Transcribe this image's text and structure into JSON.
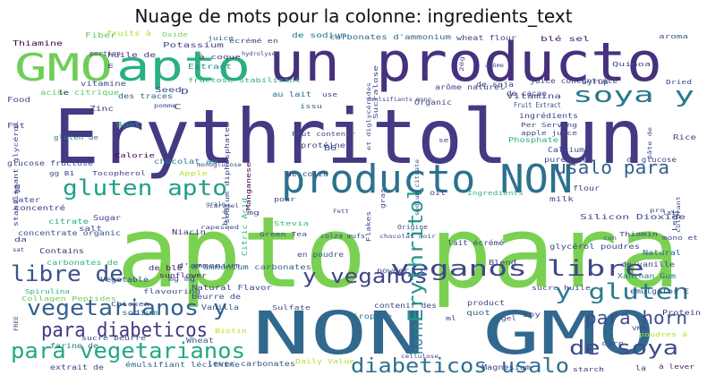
{
  "title": "Nuage de mots pour la colonne: ingredients_text",
  "words": [
    {
      "text": "apto para",
      "color": "#7ad151"
    },
    {
      "text": "Erythritol un",
      "color": "#443983"
    },
    {
      "text": "NON GMO",
      "color": "#31688e"
    },
    {
      "text": "un producto",
      "color": "#46317e"
    },
    {
      "text": "producto NON",
      "color": "#2c728e"
    },
    {
      "text": "GMO",
      "color": "#6ece58"
    },
    {
      "text": "apto",
      "color": "#2ab07f"
    },
    {
      "text": "vegetarianos y",
      "color": "#35608d"
    },
    {
      "text": "veganos libre",
      "color": "#3f4788"
    },
    {
      "text": "para vegetarianos",
      "color": "#22a884"
    },
    {
      "text": "gluten apto",
      "color": "#1fa187"
    },
    {
      "text": "libre de",
      "color": "#3b528b"
    },
    {
      "text": "y gluten",
      "color": "#287d8e"
    },
    {
      "text": "para diabeticos",
      "color": "#453781"
    },
    {
      "text": "diabeticos usalo",
      "color": "#2d708e"
    },
    {
      "text": "y veganos",
      "color": "#414487"
    },
    {
      "text": "de soya",
      "color": "#3e4a89"
    },
    {
      "text": "soya y",
      "color": "#2a788e"
    },
    {
      "text": "usalo para",
      "color": "#34618d"
    },
    {
      "text": "para horn",
      "color": "#3b518b"
    },
    {
      "text": "Erythritol",
      "color": "#1f988b"
    },
    {
      "text": "horn",
      "color": "#25848e"
    },
    {
      "text": "Thiamine",
      "color": "#440154"
    },
    {
      "text": "Fiber",
      "color": "#5ec962"
    },
    {
      "text": "fruits à",
      "color": "#b5de2b"
    },
    {
      "text": "Oxide",
      "color": "#7ad151"
    },
    {
      "text": "juice",
      "color": "#31688e"
    },
    {
      "text": "écrémé en",
      "color": "#3e4989"
    },
    {
      "text": "de sodium",
      "color": "#2a788e"
    },
    {
      "text": "carbonates d'ammonium",
      "color": "#31688e"
    },
    {
      "text": "wheat flour",
      "color": "#3e4989"
    },
    {
      "text": "blé sel",
      "color": "#482475"
    },
    {
      "text": "aroma",
      "color": "#3b528b"
    },
    {
      "text": "huile de",
      "color": "#443983"
    },
    {
      "text": "Potassium",
      "color": "#3f4788"
    },
    {
      "text": "à coque",
      "color": "#453781"
    },
    {
      "text": "Extract",
      "color": "#21918c"
    },
    {
      "text": "fructose stabilisant",
      "color": "#29af7f"
    },
    {
      "text": "vitamine",
      "color": "#3b528b"
    },
    {
      "text": "acide citrique",
      "color": "#5ec962"
    },
    {
      "text": "des traces",
      "color": "#31688e"
    },
    {
      "text": "au lait",
      "color": "#2c728e"
    },
    {
      "text": "issu",
      "color": "#31688e"
    },
    {
      "text": "Zinc",
      "color": "#46327e"
    },
    {
      "text": "Seed",
      "color": "#3b528b"
    },
    {
      "text": "Root",
      "color": "#21918c"
    },
    {
      "text": "Calorie",
      "color": "#440154"
    },
    {
      "text": "chocolat au",
      "color": "#26828e"
    },
    {
      "text": "glucose fructose",
      "color": "#3e4989"
    },
    {
      "text": "Apple",
      "color": "#b5de2b"
    },
    {
      "text": "Tocopherol",
      "color": "#3e4989"
    },
    {
      "text": "concentré",
      "color": "#414487"
    },
    {
      "text": "citrate",
      "color": "#27ad81"
    },
    {
      "text": "concentrate organic",
      "color": "#3b528b"
    },
    {
      "text": "salt",
      "color": "#3e4989"
    },
    {
      "text": "Contains",
      "color": "#46337f"
    },
    {
      "text": "carbonates de",
      "color": "#35b779"
    },
    {
      "text": "d'ammonium",
      "color": "#3f4788"
    },
    {
      "text": "Vegetable",
      "color": "#3b528b"
    },
    {
      "text": "Spirulina",
      "color": "#2db27d"
    },
    {
      "text": "Collagen Peptides",
      "color": "#6ece58"
    },
    {
      "text": "Chicken",
      "color": "#3e4989"
    },
    {
      "text": "sodium",
      "color": "#2c728e"
    },
    {
      "text": "sunflower",
      "color": "#481a6c"
    },
    {
      "text": "de blé",
      "color": "#482173"
    },
    {
      "text": "mg mg",
      "color": "#3b528b"
    },
    {
      "text": "flavouring",
      "color": "#3e4989"
    },
    {
      "text": "d'ammonium carbonates",
      "color": "#31688e"
    },
    {
      "text": "Natural Flavor",
      "color": "#3e4989"
    },
    {
      "text": "beurre de",
      "color": "#3e4989"
    },
    {
      "text": "Vanilla",
      "color": "#3b528b"
    },
    {
      "text": "Biotin",
      "color": "#bddf26"
    },
    {
      "text": "Wheat",
      "color": "#35608d"
    },
    {
      "text": "sucre beurre",
      "color": "#3e4989"
    },
    {
      "text": "farine de",
      "color": "#2a788e"
    },
    {
      "text": "extrait de",
      "color": "#3e4989"
    },
    {
      "text": "émulsifiant lécithine",
      "color": "#31688e"
    },
    {
      "text": "lever carbonates",
      "color": "#3b528b"
    },
    {
      "text": "Daily Value",
      "color": "#b5de2b"
    },
    {
      "text": "Magnesium",
      "color": "#3e4989"
    },
    {
      "text": "starch",
      "color": "#46327e"
    },
    {
      "text": "à lever",
      "color": "#482475"
    },
    {
      "text": "la",
      "color": "#3f4788"
    },
    {
      "text": "Natural",
      "color": "#31688e"
    },
    {
      "text": "de vanille",
      "color": "#3e4989"
    },
    {
      "text": "Xanthan Gum",
      "color": "#2a788e"
    },
    {
      "text": "emulgator E",
      "color": "#3e4989"
    },
    {
      "text": "Protein",
      "color": "#46327e"
    },
    {
      "text": "poudres à",
      "color": "#b5de2b"
    },
    {
      "text": "corn",
      "color": "#3e4989"
    },
    {
      "text": "Soy",
      "color": "#3b528b"
    },
    {
      "text": "sucre huile",
      "color": "#3e4989"
    },
    {
      "text": "product",
      "color": "#3e4989"
    },
    {
      "text": "quot",
      "color": "#31688e"
    },
    {
      "text": "Blend",
      "color": "#3e4989"
    },
    {
      "text": "contenir des",
      "color": "#3e4989"
    },
    {
      "text": "en poudre",
      "color": "#3b528b"
    },
    {
      "text": "powder",
      "color": "#3e4989"
    },
    {
      "text": "sirop de",
      "color": "#31688e"
    },
    {
      "text": "Sulfate",
      "color": "#3e4989"
    },
    {
      "text": "Stevia",
      "color": "#35b779"
    },
    {
      "text": "Green Tea",
      "color": "#3e4989"
    },
    {
      "text": "Niacin",
      "color": "#46327e"
    },
    {
      "text": "Citric Acid",
      "color": "#35b779"
    },
    {
      "text": "Sugar",
      "color": "#3e4989"
    },
    {
      "text": "water",
      "color": "#3e4989"
    },
    {
      "text": "gluten de",
      "color": "#2a788e"
    },
    {
      "text": "stabilisant glycérol",
      "color": "#3e4989"
    },
    {
      "text": "Food",
      "color": "#3e4989"
    },
    {
      "text": "Fat",
      "color": "#3e4989"
    },
    {
      "text": "protéine",
      "color": "#3e4989"
    },
    {
      "text": "de colza",
      "color": "#3e4989"
    },
    {
      "text": "B6",
      "color": "#3e4989"
    },
    {
      "text": "Manganese",
      "color": "#440154"
    },
    {
      "text": "sodium diphosphates",
      "color": "#3e4989"
    },
    {
      "text": "Peut contenir",
      "color": "#3e4989"
    },
    {
      "text": "Sucralose",
      "color": "#3e4989"
    },
    {
      "text": "Organic",
      "color": "#3e4989"
    },
    {
      "text": "use",
      "color": "#3e4989"
    },
    {
      "text": "de soja",
      "color": "#3e4989"
    },
    {
      "text": "arôme naturel",
      "color": "#3e4989"
    },
    {
      "text": "de cacao",
      "color": "#3e4989"
    },
    {
      "text": "juice concentrate",
      "color": "#3e4989"
    },
    {
      "text": "Vitamina",
      "color": "#3e4989"
    },
    {
      "text": "Fruit Extract",
      "color": "#3e4989"
    },
    {
      "text": "ingrédients",
      "color": "#3e4989"
    },
    {
      "text": "Syrup",
      "color": "#3e4989"
    },
    {
      "text": "Quinoa",
      "color": "#3e4989"
    },
    {
      "text": "Dried",
      "color": "#3e4989"
    },
    {
      "text": "Per Serving",
      "color": "#3e4989"
    },
    {
      "text": "apple juice",
      "color": "#3e4989"
    },
    {
      "text": "Phosphate",
      "color": "#2db27d"
    },
    {
      "text": "Calcium",
      "color": "#3e4989"
    },
    {
      "text": "Rice",
      "color": "#3e4989"
    },
    {
      "text": "purée de",
      "color": "#3e4989"
    },
    {
      "text": "de glucose",
      "color": "#3e4989"
    },
    {
      "text": "sel",
      "color": "#3e4989"
    },
    {
      "text": "lait écrémé",
      "color": "#3e4989"
    },
    {
      "text": "oil",
      "color": "#3e4989"
    },
    {
      "text": "Ingredients",
      "color": "#35b779"
    },
    {
      "text": "flour",
      "color": "#3e4989"
    },
    {
      "text": "milk",
      "color": "#3e4989"
    },
    {
      "text": "Silicon Dioxide",
      "color": "#3e4989"
    },
    {
      "text": "glycérol poudres",
      "color": "#3e4989"
    },
    {
      "text": "Thiamin",
      "color": "#3e4989"
    },
    {
      "text": "Leaf",
      "color": "#3e4989"
    },
    {
      "text": "mono et",
      "color": "#3e4989"
    },
    {
      "text": "pour",
      "color": "#3e4989"
    },
    {
      "text": "mg",
      "color": "#3e4989"
    },
    {
      "text": "Flakes",
      "color": "#3e4989"
    },
    {
      "text": "gras",
      "color": "#3e4989"
    },
    {
      "text": "Fett",
      "color": "#3e4989"
    },
    {
      "text": "colza œufs",
      "color": "#3e4989"
    },
    {
      "text": "chocolat noir",
      "color": "#3e4989"
    },
    {
      "text": "Origine",
      "color": "#3e4989"
    },
    {
      "text": "sodium citrate",
      "color": "#3e4989"
    },
    {
      "text": "ml",
      "color": "#3e4989"
    },
    {
      "text": "gel",
      "color": "#3e4989"
    },
    {
      "text": "VNR",
      "color": "#3e4989"
    },
    {
      "text": "colorant",
      "color": "#3e4989"
    },
    {
      "text": "lait",
      "color": "#3e4989"
    },
    {
      "text": "pro",
      "color": "#3e4989"
    },
    {
      "text": "E",
      "color": "#3e4989"
    },
    {
      "text": "D",
      "color": "#3e4989"
    },
    {
      "text": "C",
      "color": "#3e4989"
    },
    {
      "text": "P",
      "color": "#3e4989"
    },
    {
      "text": "da",
      "color": "#3e4989"
    },
    {
      "text": "g",
      "color": "#3e4989"
    },
    {
      "text": "gg B1",
      "color": "#3e4989"
    },
    {
      "text": "portion",
      "color": "#3e4989"
    },
    {
      "text": "le",
      "color": "#3e4989"
    },
    {
      "text": "pomme",
      "color": "#3e4989"
    },
    {
      "text": "émulsifiants mono",
      "color": "#3e4989"
    },
    {
      "text": "hydrolysée",
      "color": "#3e4989"
    },
    {
      "text": "20g",
      "color": "#3e4989"
    },
    {
      "text": "arôme",
      "color": "#3e4989"
    },
    {
      "text": "et diglycérides",
      "color": "#3e4989"
    },
    {
      "text": "monoglucose",
      "color": "#3e4989"
    },
    {
      "text": "sat",
      "color": "#3e4989"
    },
    {
      "text": "rapeseed",
      "color": "#3e4989"
    },
    {
      "text": "caramel",
      "color": "#3e4989"
    },
    {
      "text": "_blé_",
      "color": "#3e4989"
    },
    {
      "text": "cellulose",
      "color": "#3e4989"
    },
    {
      "text": "FREE",
      "color": "#3e4989"
    },
    {
      "text": "con",
      "color": "#3e4989"
    },
    {
      "text": "grain",
      "color": "#3e4989"
    },
    {
      "text": "pâte de",
      "color": "#3e4989"
    }
  ]
}
